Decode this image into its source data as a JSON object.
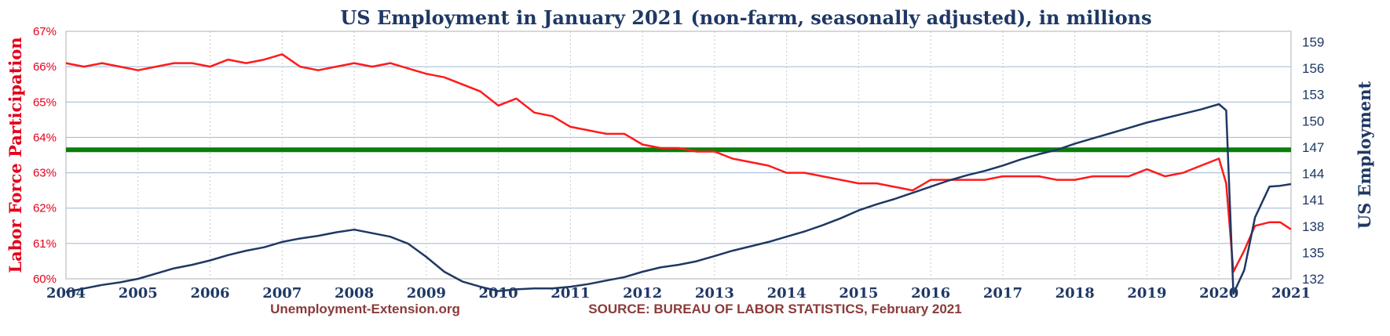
{
  "chart_data": {
    "type": "line",
    "title": "US Employment in January 2021 (non-farm, seasonally adjusted), in millions",
    "ylabel_left": "Labor Force Participation",
    "ylabel_right": "US Employment",
    "footer_left": "Unemployment-Extension.org",
    "footer_right": "SOURCE: BUREAU OF LABOR STATISTICS, February 2021",
    "x_ticks": [
      "2004",
      "2005",
      "2006",
      "2007",
      "2008",
      "2009",
      "2010",
      "2011",
      "2012",
      "2013",
      "2014",
      "2015",
      "2016",
      "2017",
      "2018",
      "2019",
      "2020",
      "2021"
    ],
    "xlim": [
      2004,
      2021
    ],
    "y_left": {
      "ticks": [
        "60%",
        "61%",
        "62%",
        "63%",
        "64%",
        "65%",
        "66%",
        "67%"
      ],
      "lim": [
        60,
        67
      ]
    },
    "y_right": {
      "ticks": [
        "132",
        "135",
        "138",
        "141",
        "144",
        "147",
        "150",
        "153",
        "156",
        "159"
      ],
      "lim": [
        132,
        160.2
      ]
    },
    "grid": true,
    "reference_line": {
      "axis": "left",
      "value": 63.65,
      "color": "#0a7d0a"
    },
    "series": [
      {
        "axis": "left",
        "color": "#ff1a1a",
        "points": [
          [
            2004.0,
            66.1
          ],
          [
            2004.25,
            66.0
          ],
          [
            2004.5,
            66.1
          ],
          [
            2004.75,
            66.0
          ],
          [
            2005.0,
            65.9
          ],
          [
            2005.25,
            66.0
          ],
          [
            2005.5,
            66.1
          ],
          [
            2005.75,
            66.1
          ],
          [
            2006.0,
            66.0
          ],
          [
            2006.25,
            66.2
          ],
          [
            2006.5,
            66.1
          ],
          [
            2006.75,
            66.2
          ],
          [
            2007.0,
            66.35
          ],
          [
            2007.25,
            66.0
          ],
          [
            2007.5,
            65.9
          ],
          [
            2007.75,
            66.0
          ],
          [
            2008.0,
            66.1
          ],
          [
            2008.25,
            66.0
          ],
          [
            2008.5,
            66.1
          ],
          [
            2008.75,
            65.95
          ],
          [
            2009.0,
            65.8
          ],
          [
            2009.25,
            65.7
          ],
          [
            2009.5,
            65.5
          ],
          [
            2009.75,
            65.3
          ],
          [
            2010.0,
            64.9
          ],
          [
            2010.25,
            65.1
          ],
          [
            2010.5,
            64.7
          ],
          [
            2010.75,
            64.6
          ],
          [
            2011.0,
            64.3
          ],
          [
            2011.25,
            64.2
          ],
          [
            2011.5,
            64.1
          ],
          [
            2011.75,
            64.1
          ],
          [
            2012.0,
            63.8
          ],
          [
            2012.25,
            63.7
          ],
          [
            2012.5,
            63.7
          ],
          [
            2012.75,
            63.6
          ],
          [
            2013.0,
            63.6
          ],
          [
            2013.25,
            63.4
          ],
          [
            2013.5,
            63.3
          ],
          [
            2013.75,
            63.2
          ],
          [
            2014.0,
            63.0
          ],
          [
            2014.25,
            63.0
          ],
          [
            2014.5,
            62.9
          ],
          [
            2014.75,
            62.8
          ],
          [
            2015.0,
            62.7
          ],
          [
            2015.25,
            62.7
          ],
          [
            2015.5,
            62.6
          ],
          [
            2015.75,
            62.5
          ],
          [
            2016.0,
            62.8
          ],
          [
            2016.25,
            62.8
          ],
          [
            2016.5,
            62.8
          ],
          [
            2016.75,
            62.8
          ],
          [
            2017.0,
            62.9
          ],
          [
            2017.25,
            62.9
          ],
          [
            2017.5,
            62.9
          ],
          [
            2017.75,
            62.8
          ],
          [
            2018.0,
            62.8
          ],
          [
            2018.25,
            62.9
          ],
          [
            2018.5,
            62.9
          ],
          [
            2018.75,
            62.9
          ],
          [
            2019.0,
            63.1
          ],
          [
            2019.25,
            62.9
          ],
          [
            2019.5,
            63.0
          ],
          [
            2019.75,
            63.2
          ],
          [
            2020.0,
            63.4
          ],
          [
            2020.1,
            62.7
          ],
          [
            2020.2,
            60.2
          ],
          [
            2020.35,
            60.8
          ],
          [
            2020.5,
            61.5
          ],
          [
            2020.7,
            61.6
          ],
          [
            2020.85,
            61.6
          ],
          [
            2021.0,
            61.4
          ]
        ]
      },
      {
        "axis": "right",
        "color": "#1f3864",
        "points": [
          [
            2004.0,
            130.5
          ],
          [
            2004.25,
            130.9
          ],
          [
            2004.5,
            131.3
          ],
          [
            2004.75,
            131.6
          ],
          [
            2005.0,
            132.0
          ],
          [
            2005.25,
            132.6
          ],
          [
            2005.5,
            133.2
          ],
          [
            2005.75,
            133.6
          ],
          [
            2006.0,
            134.1
          ],
          [
            2006.25,
            134.7
          ],
          [
            2006.5,
            135.2
          ],
          [
            2006.75,
            135.6
          ],
          [
            2007.0,
            136.2
          ],
          [
            2007.25,
            136.6
          ],
          [
            2007.5,
            136.9
          ],
          [
            2007.75,
            137.3
          ],
          [
            2008.0,
            137.6
          ],
          [
            2008.25,
            137.2
          ],
          [
            2008.5,
            136.8
          ],
          [
            2008.75,
            136.0
          ],
          [
            2009.0,
            134.5
          ],
          [
            2009.25,
            132.8
          ],
          [
            2009.5,
            131.7
          ],
          [
            2009.75,
            131.1
          ],
          [
            2010.0,
            130.6
          ],
          [
            2010.25,
            130.8
          ],
          [
            2010.5,
            130.9
          ],
          [
            2010.75,
            130.9
          ],
          [
            2011.0,
            131.1
          ],
          [
            2011.25,
            131.4
          ],
          [
            2011.5,
            131.8
          ],
          [
            2011.75,
            132.2
          ],
          [
            2012.0,
            132.8
          ],
          [
            2012.25,
            133.3
          ],
          [
            2012.5,
            133.6
          ],
          [
            2012.75,
            134.0
          ],
          [
            2013.0,
            134.6
          ],
          [
            2013.25,
            135.2
          ],
          [
            2013.5,
            135.7
          ],
          [
            2013.75,
            136.2
          ],
          [
            2014.0,
            136.8
          ],
          [
            2014.25,
            137.4
          ],
          [
            2014.5,
            138.1
          ],
          [
            2014.75,
            138.9
          ],
          [
            2015.0,
            139.8
          ],
          [
            2015.25,
            140.5
          ],
          [
            2015.5,
            141.1
          ],
          [
            2015.75,
            141.8
          ],
          [
            2016.0,
            142.5
          ],
          [
            2016.25,
            143.2
          ],
          [
            2016.5,
            143.8
          ],
          [
            2016.75,
            144.3
          ],
          [
            2017.0,
            144.9
          ],
          [
            2017.25,
            145.6
          ],
          [
            2017.5,
            146.2
          ],
          [
            2017.75,
            146.7
          ],
          [
            2018.0,
            147.4
          ],
          [
            2018.25,
            148.0
          ],
          [
            2018.5,
            148.6
          ],
          [
            2018.75,
            149.2
          ],
          [
            2019.0,
            149.8
          ],
          [
            2019.25,
            150.3
          ],
          [
            2019.5,
            150.8
          ],
          [
            2019.75,
            151.3
          ],
          [
            2020.0,
            151.9
          ],
          [
            2020.1,
            151.2
          ],
          [
            2020.2,
            130.3
          ],
          [
            2020.35,
            133.0
          ],
          [
            2020.5,
            139.0
          ],
          [
            2020.7,
            142.5
          ],
          [
            2020.85,
            142.6
          ],
          [
            2021.0,
            142.8
          ]
        ]
      }
    ]
  }
}
